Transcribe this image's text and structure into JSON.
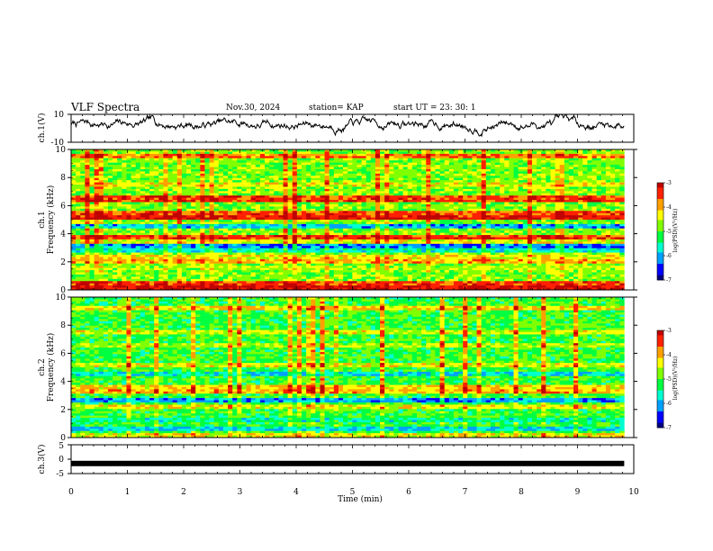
{
  "header": {
    "title": "VLF Spectra",
    "date": "Nov.30, 2024",
    "station": "station= KAP",
    "start": "start  UT  =   23: 30: 1"
  },
  "colors": {
    "ch1_line": "#000000",
    "ch3_bar": "#000000",
    "colormap": [
      "#000080",
      "#0000ff",
      "#00a0ff",
      "#00ffd0",
      "#00ff40",
      "#80ff00",
      "#ffff00",
      "#ffa000",
      "#ff2000",
      "#c00000"
    ]
  },
  "chart_data": [
    {
      "type": "line",
      "id": "ch1-waveform",
      "ylabel": "ch.1(V)",
      "ylim": [
        -10,
        10
      ],
      "ytick_labels": [
        "10",
        "-10"
      ],
      "xlim": [
        0,
        9.83
      ],
      "x_unit": "min",
      "description_values": "noisy waveform oscillating roughly between -8 V and +10 V",
      "y_min_approx": -8,
      "y_max_approx": 10
    },
    {
      "type": "heatmap",
      "id": "ch1-spectrogram",
      "ylabel_line1": "ch.1",
      "ylabel_line2": "Frequency (kHz)",
      "ylim": [
        0,
        10
      ],
      "ytick_labels": [
        "0",
        "2",
        "4",
        "6",
        "8",
        "10"
      ],
      "xlim": [
        0,
        9.83
      ],
      "colorbar": {
        "label": "log(PSD)(V²/Hz)",
        "range": [
          -7,
          -3
        ],
        "tick_labels": [
          "-3",
          "-4",
          "-5",
          "-6",
          "-7"
        ]
      },
      "dominant_level": -4.8,
      "bands": [
        {
          "freq": 0.2,
          "level": -3.2
        },
        {
          "freq": 0.5,
          "level": -3.5
        },
        {
          "freq": 1.6,
          "level": -4.6
        },
        {
          "freq": 2.0,
          "level": -4.0
        },
        {
          "freq": 2.3,
          "level": -4.3
        },
        {
          "freq": 2.8,
          "level": -5.6
        },
        {
          "freq": 3.2,
          "level": -6.2
        },
        {
          "freq": 3.5,
          "level": -4.4
        },
        {
          "freq": 3.8,
          "level": -3.4
        },
        {
          "freq": 4.5,
          "level": -6.0
        },
        {
          "freq": 5.2,
          "level": -3.3
        },
        {
          "freq": 5.5,
          "level": -3.6
        },
        {
          "freq": 6.5,
          "level": -3.5
        },
        {
          "freq": 7.5,
          "level": -4.4
        },
        {
          "freq": 9.5,
          "level": -3.8
        }
      ]
    },
    {
      "type": "heatmap",
      "id": "ch2-spectrogram",
      "ylabel_line1": "ch.2",
      "ylabel_line2": "Frequency (kHz)",
      "ylim": [
        0,
        10
      ],
      "ytick_labels": [
        "0",
        "2",
        "4",
        "6",
        "8",
        "10"
      ],
      "xlim": [
        0,
        9.83
      ],
      "colorbar": {
        "label": "log(PSD)(V²/Hz)",
        "range": [
          -7,
          -3
        ],
        "tick_labels": [
          "-3",
          "-4",
          "-5",
          "-6",
          "-7"
        ]
      },
      "dominant_level": -5.1,
      "bands": [
        {
          "freq": 0.2,
          "level": -4.3
        },
        {
          "freq": 0.6,
          "level": -5.8
        },
        {
          "freq": 1.2,
          "level": -5.5
        },
        {
          "freq": 2.2,
          "level": -4.4
        },
        {
          "freq": 2.7,
          "level": -6.1
        },
        {
          "freq": 3.3,
          "level": -4.0
        },
        {
          "freq": 3.6,
          "level": -4.2
        },
        {
          "freq": 4.5,
          "level": -5.8
        },
        {
          "freq": 5.2,
          "level": -4.4
        },
        {
          "freq": 6.6,
          "level": -4.6
        },
        {
          "freq": 7.5,
          "level": -4.5
        },
        {
          "freq": 9.2,
          "level": -4.2
        }
      ]
    },
    {
      "type": "line",
      "id": "ch3-trace",
      "ylabel": "ch.3(V)",
      "ylim": [
        -5,
        5
      ],
      "ytick_labels": [
        "5",
        "0",
        "-5"
      ],
      "xlim": [
        0,
        9.83
      ],
      "constant_value": -1.5,
      "xlabel": "Time  (min)",
      "xaxis_range": [
        0,
        10
      ],
      "xtick_labels": [
        "0",
        "1",
        "2",
        "3",
        "4",
        "5",
        "6",
        "7",
        "8",
        "9",
        "10"
      ]
    }
  ]
}
